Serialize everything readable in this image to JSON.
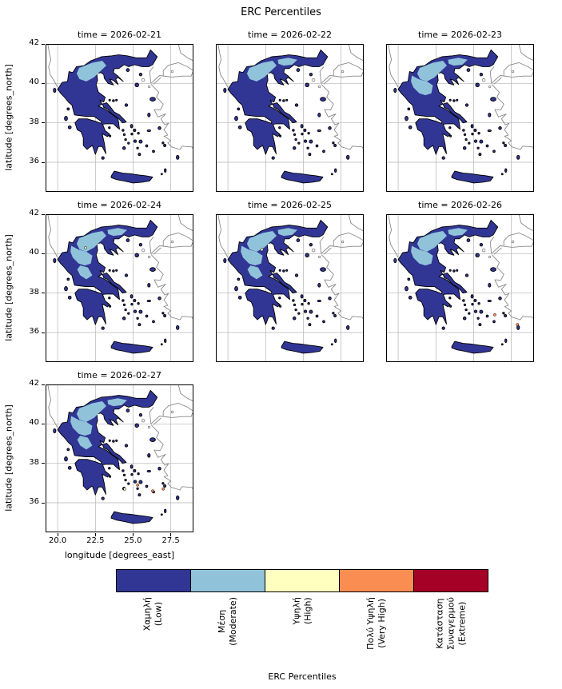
{
  "figure": {
    "title": "ERC Percentiles",
    "xlabel": "longitude [degrees_east]",
    "ylabel": "latitude [degrees_north]",
    "xticks": [
      "20.0",
      "22.5",
      "25.0",
      "27.5"
    ],
    "yticks": [
      "42",
      "40",
      "38",
      "36"
    ]
  },
  "panels": [
    {
      "title": "time = 2026-02-21",
      "patches": [
        "p1"
      ],
      "dots": []
    },
    {
      "title": "time = 2026-02-22",
      "patches": [
        "p1",
        "p2b"
      ],
      "dots": []
    },
    {
      "title": "time = 2026-02-23",
      "patches": [
        "p1",
        "p2a",
        "p2b"
      ],
      "dots": []
    },
    {
      "title": "time = 2026-02-24",
      "patches": [
        "p1",
        "p2a",
        "p2b",
        "p3"
      ],
      "dots": [
        {
          "lon": 21.85,
          "lat": 40.3,
          "cat": 2
        }
      ]
    },
    {
      "title": "time = 2026-02-25",
      "patches": [
        "p1",
        "p2a",
        "p2b",
        "p3"
      ],
      "dots": [
        {
          "lon": 22.25,
          "lat": 40.2,
          "cat": 2
        }
      ]
    },
    {
      "title": "time = 2026-02-26",
      "patches": [
        "p1",
        "p2a",
        "p2b"
      ],
      "dots": [
        {
          "lon": 26.4,
          "lat": 36.9,
          "cat": 3
        },
        {
          "lon": 27.9,
          "lat": 36.4,
          "cat": 3
        }
      ]
    },
    {
      "title": "time = 2026-02-27",
      "patches": [
        "p1",
        "p2a",
        "p2b",
        "p3"
      ],
      "dots": [
        {
          "lon": 26.3,
          "lat": 36.6,
          "cat": 3
        },
        {
          "lon": 27.0,
          "lat": 36.7,
          "cat": 3
        },
        {
          "lon": 25.3,
          "lat": 36.9,
          "cat": 3
        },
        {
          "lon": 24.45,
          "lat": 36.7,
          "cat": 2
        }
      ]
    }
  ],
  "colorbar": {
    "label": "ERC Percentiles",
    "categories": [
      {
        "name": "Χαμηλή (Low)",
        "lines": [
          "Χαμηλή",
          "(Low)"
        ],
        "color": "#313695"
      },
      {
        "name": "Μέση (Moderate)",
        "lines": [
          "Μέση",
          "(Moderate)"
        ],
        "color": "#90c3da"
      },
      {
        "name": "Υψηλή (High)",
        "lines": [
          "Υψηλή",
          "(High)"
        ],
        "color": "#ffffbf"
      },
      {
        "name": "Πολύ Υψηλή (Very High)",
        "lines": [
          "Πολύ Υψηλή",
          "(Very High)"
        ],
        "color": "#f98d52"
      },
      {
        "name": "Κατάσταση Συναγερμού (Extreme)",
        "lines": [
          "Κατάσταση",
          "Συναγερμού",
          "(Extreme)"
        ],
        "color": "#a50026"
      }
    ]
  },
  "chart_data": {
    "type": "heatmap",
    "subtype": "faceted categorical choropleth map of Greece",
    "title": "ERC Percentiles",
    "facet_variable": "time",
    "facets": [
      "2026-02-21",
      "2026-02-22",
      "2026-02-23",
      "2026-02-24",
      "2026-02-25",
      "2026-02-26",
      "2026-02-27"
    ],
    "xlabel": "longitude [degrees_east]",
    "ylabel": "latitude [degrees_north]",
    "xticks": [
      20.0,
      22.5,
      25.0,
      27.5
    ],
    "yticks": [
      36,
      38,
      40,
      42
    ],
    "xlim": [
      19.2,
      29.0
    ],
    "ylim": [
      34.5,
      42.0
    ],
    "grid": true,
    "categories": [
      "Χαμηλή (Low)",
      "Μέση (Moderate)",
      "Υψηλή (High)",
      "Πολύ Υψηλή (Very High)",
      "Κατάσταση Συναγερμού (Extreme)"
    ],
    "colors": [
      "#313695",
      "#90c3da",
      "#ffffbf",
      "#f98d52",
      "#a50026"
    ],
    "colorbar_label": "ERC Percentiles",
    "legend_position": "horizontal colorbar below panels",
    "facet_values": [
      {
        "time": "2026-02-21",
        "dominant_class": "Low",
        "moderate_areas": "west and central Macedonia"
      },
      {
        "time": "2026-02-22",
        "dominant_class": "Low",
        "moderate_areas": "Macedonia, spreading eastward"
      },
      {
        "time": "2026-02-23",
        "dominant_class": "Low",
        "moderate_areas": "Macedonia, Epirus and Thessaly"
      },
      {
        "time": "2026-02-24",
        "dominant_class": "Low",
        "moderate_areas": "northern and central Greece",
        "high_spots": "isolated pixel in western Macedonia"
      },
      {
        "time": "2026-02-25",
        "dominant_class": "Low",
        "moderate_areas": "northern and central Greece",
        "high_spots": "isolated pixel in central Macedonia"
      },
      {
        "time": "2026-02-26",
        "dominant_class": "Low",
        "moderate_areas": "northern Greece",
        "very_high_spots": "isolated southeast Aegean island pixels"
      },
      {
        "time": "2026-02-27",
        "dominant_class": "Low",
        "moderate_areas": "northern and central Greece",
        "very_high_spots": "scattered Dodecanese / southeast Aegean pixels"
      }
    ]
  }
}
